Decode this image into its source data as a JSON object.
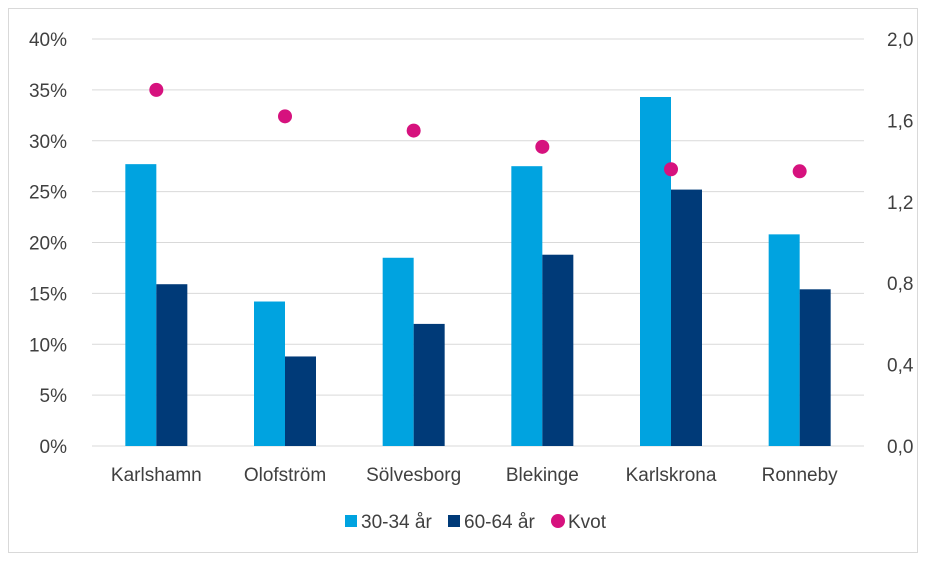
{
  "chart_data": {
    "type": "bar",
    "title": "",
    "xlabel": "",
    "ylabel": "",
    "categories": [
      "Karlshamn",
      "Olofström",
      "Sölvesborg",
      "Blekinge",
      "Karlskrona",
      "Ronneby"
    ],
    "series": [
      {
        "name": "30-34 år",
        "type": "bar",
        "axis": "left",
        "color": "#00a3e0",
        "values": [
          27.7,
          14.2,
          18.5,
          27.5,
          34.3,
          20.8
        ]
      },
      {
        "name": "60-64 år",
        "type": "bar",
        "axis": "left",
        "color": "#003a78",
        "values": [
          15.9,
          8.8,
          12.0,
          18.8,
          25.2,
          15.4
        ]
      },
      {
        "name": "Kvot",
        "type": "scatter",
        "axis": "right",
        "color": "#d6127e",
        "values": [
          1.75,
          1.62,
          1.55,
          1.47,
          1.36,
          1.35
        ]
      }
    ],
    "y_left": {
      "ylim": [
        0,
        40
      ],
      "ticks": [
        "0%",
        "5%",
        "10%",
        "15%",
        "20%",
        "25%",
        "30%",
        "35%",
        "40%"
      ]
    },
    "y_right": {
      "ylim": [
        0,
        2.0
      ],
      "ticks": [
        "0,0",
        "0,4",
        "0,8",
        "1,2",
        "1,6",
        "2,0"
      ]
    },
    "grid": true,
    "legend": "bottom"
  }
}
